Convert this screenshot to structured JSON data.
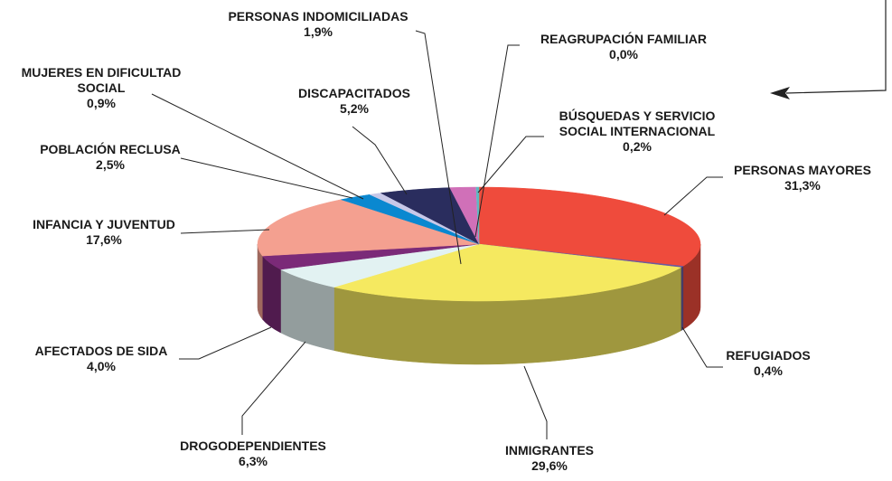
{
  "chart_data": {
    "type": "pie",
    "categories": [
      "PERSONAS MAYORES",
      "REFUGIADOS",
      "INMIGRANTES",
      "DROGODEPENDIENTES",
      "AFECTADOS DE SIDA",
      "INFANCIA Y JUVENTUD",
      "POBLACIÓN RECLUSA",
      "MUJERES EN DIFICULTAD SOCIAL",
      "DISCAPACITADOS",
      "PERSONAS INDOMICILIADAS",
      "REAGRUPACIÓN FAMILIAR",
      "BÚSQUEDAS Y SERVICIO SOCIAL INTERNACIONAL"
    ],
    "values": [
      31.3,
      0.4,
      29.6,
      6.3,
      4.0,
      17.6,
      2.5,
      0.9,
      5.2,
      1.9,
      0.0,
      0.2
    ],
    "value_labels": [
      "31,3%",
      "0,4%",
      "29,6%",
      "6,3%",
      "4,0%",
      "17,6%",
      "2,5%",
      "0,9%",
      "5,2%",
      "1,9%",
      "0,0%",
      "0,2%"
    ],
    "colors": [
      "#ef4b3c",
      "#6a5aa0",
      "#f5e960",
      "#e2f2f2",
      "#7b2a78",
      "#f4a090",
      "#0a88d0",
      "#c8c8e8",
      "#2a2d5e",
      "#d070b8",
      "#9fd0d8",
      "#60b8c0"
    ]
  }
}
